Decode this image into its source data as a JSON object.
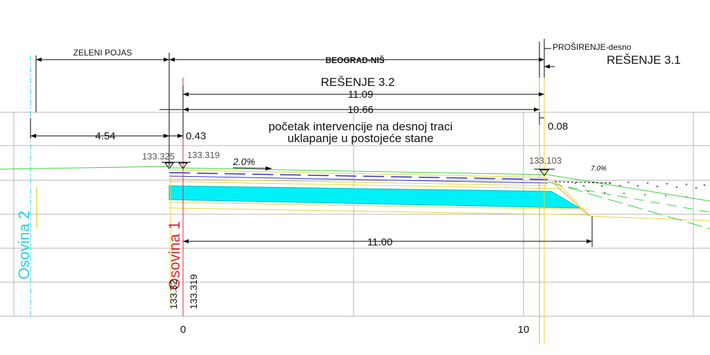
{
  "labels": {
    "zeleni_pojas": "ZELENI POJAS",
    "beograd_nis": "BEOGRAD-NIŠ",
    "prosirenje": "PROŠIRENJE-desno",
    "resenje_31": "REŠENJE  3.1",
    "resenje_32": "REŠENJE   3.2",
    "note_line1": "početak intervencije na desnoj traci",
    "note_line2": "uklapanje u postojeće stane"
  },
  "dimensions": {
    "d_11_09": "11.09",
    "d_10_66": "10.66",
    "d_4_54": "4.54",
    "d_0_43": "0.43",
    "d_0_08": "0.08",
    "d_11_00": "11.00"
  },
  "elevations": {
    "e1": "133.325",
    "e2": "133.319",
    "e3": "133.103",
    "v1": "133.32",
    "v2": "133.319"
  },
  "slopes": {
    "s1": "2.0%",
    "s2": "7.0%"
  },
  "axes": {
    "osovina2": "Osovina 2",
    "osovina1": "Osovina 1"
  },
  "ruler": {
    "zero": "0",
    "ten": "10"
  },
  "colors": {
    "cyan_fill": "#00f0f8",
    "axis1": "#e3262b",
    "axis2": "#1fd3e6",
    "green": "#3bd23b",
    "yellow": "#e8d43a",
    "blue": "#2b2bd9",
    "orange": "#e8a23a"
  }
}
